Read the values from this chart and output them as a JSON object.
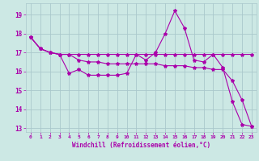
{
  "xlabel": "Windchill (Refroidissement éolien,°C)",
  "xlim": [
    -0.5,
    23.5
  ],
  "ylim": [
    12.8,
    19.6
  ],
  "yticks": [
    13,
    14,
    15,
    16,
    17,
    18,
    19
  ],
  "xticks": [
    0,
    1,
    2,
    3,
    4,
    5,
    6,
    7,
    8,
    9,
    10,
    11,
    12,
    13,
    14,
    15,
    16,
    17,
    18,
    19,
    20,
    21,
    22,
    23
  ],
  "bg_color": "#cce8e4",
  "grid_color": "#aac8cc",
  "line_color": "#aa00aa",
  "series1_x": [
    0,
    1,
    2,
    3,
    4,
    5,
    6,
    7,
    8,
    9,
    10,
    11,
    12,
    13,
    14,
    15,
    16,
    17,
    18,
    19,
    20,
    21,
    22,
    23
  ],
  "series1_y": [
    17.8,
    17.2,
    17.0,
    16.9,
    15.9,
    16.1,
    15.8,
    15.8,
    15.8,
    15.8,
    15.9,
    16.9,
    16.6,
    17.0,
    18.0,
    19.2,
    18.3,
    16.6,
    16.5,
    16.9,
    16.2,
    14.4,
    13.2,
    13.1
  ],
  "series2_x": [
    0,
    1,
    2,
    3,
    4,
    5,
    6,
    7,
    8,
    9,
    10,
    11,
    12,
    13,
    14,
    15,
    16,
    17,
    18,
    19,
    20,
    21,
    22,
    23
  ],
  "series2_y": [
    17.8,
    17.2,
    17.0,
    16.9,
    16.9,
    16.9,
    16.9,
    16.9,
    16.9,
    16.9,
    16.9,
    16.9,
    16.9,
    16.9,
    16.9,
    16.9,
    16.9,
    16.9,
    16.9,
    16.9,
    16.9,
    16.9,
    16.9,
    16.9
  ],
  "series3_x": [
    0,
    1,
    2,
    3,
    4,
    5,
    6,
    7,
    8,
    9,
    10,
    11,
    12,
    13,
    14,
    15,
    16,
    17,
    18,
    19,
    20,
    21,
    22,
    23
  ],
  "series3_y": [
    17.8,
    17.2,
    17.0,
    16.9,
    16.9,
    16.6,
    16.5,
    16.5,
    16.4,
    16.4,
    16.4,
    16.4,
    16.4,
    16.4,
    16.3,
    16.3,
    16.3,
    16.2,
    16.2,
    16.1,
    16.1,
    15.5,
    14.5,
    13.1
  ],
  "line_width": 0.8,
  "marker": "*",
  "marker_size": 3
}
